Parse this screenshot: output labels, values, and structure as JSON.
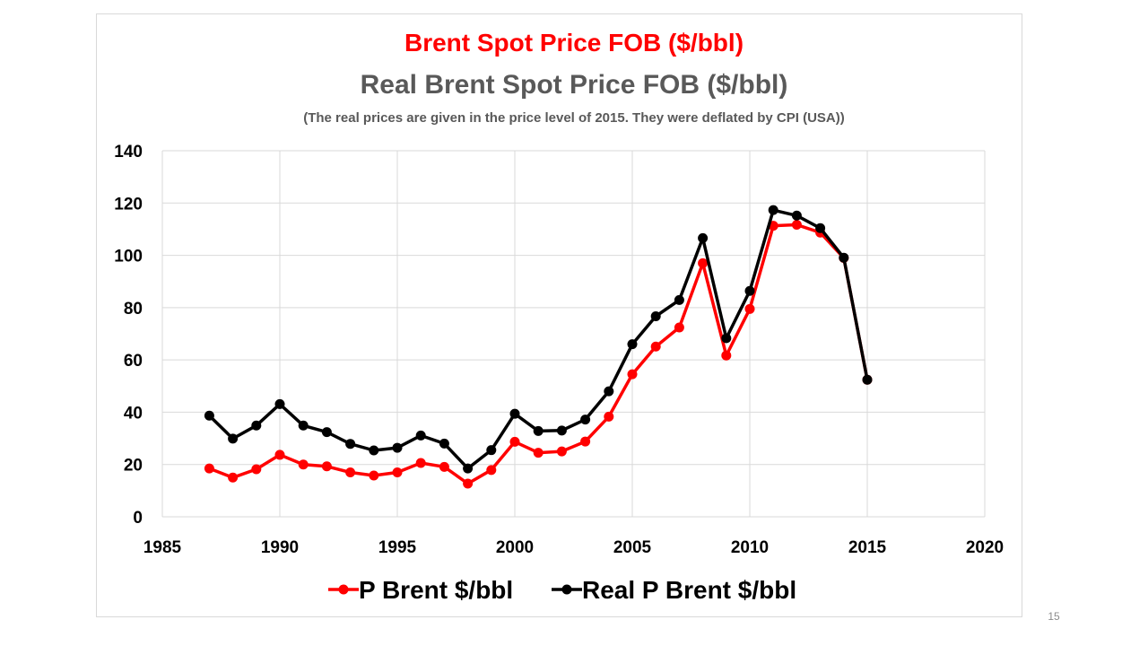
{
  "chart_data": {
    "type": "line",
    "title": "Brent Spot Price FOB ($/bbl)",
    "subtitle": "Real Brent Spot Price FOB ($/bbl)",
    "note": "(The real prices are given in the price level of 2015. They were deflated by CPI (USA))",
    "xlabel": "",
    "ylabel": "",
    "xlim": [
      1985,
      2020
    ],
    "ylim": [
      0,
      140
    ],
    "x_ticks": [
      1985,
      1990,
      1995,
      2000,
      2005,
      2010,
      2015,
      2020
    ],
    "y_ticks": [
      0,
      20,
      40,
      60,
      80,
      100,
      120,
      140
    ],
    "grid": true,
    "legend_position": "bottom",
    "x": [
      1987,
      1988,
      1989,
      1990,
      1991,
      1992,
      1993,
      1994,
      1995,
      1996,
      1997,
      1998,
      1999,
      2000,
      2001,
      2002,
      2003,
      2004,
      2005,
      2006,
      2007,
      2008,
      2009,
      2010,
      2011,
      2012,
      2013,
      2014,
      2015
    ],
    "series": [
      {
        "name": "P Brent $/bbl",
        "color": "#ff0000",
        "values": [
          18.5,
          15.0,
          18.2,
          23.7,
          20.0,
          19.3,
          17.0,
          15.8,
          17.0,
          20.6,
          19.1,
          12.7,
          17.9,
          28.7,
          24.5,
          25.0,
          28.8,
          38.3,
          54.5,
          65.1,
          72.4,
          97.0,
          61.7,
          79.5,
          111.3,
          111.7,
          108.7,
          99.0,
          52.4
        ]
      },
      {
        "name": "Real P Brent $/bbl",
        "color": "#000000",
        "values": [
          38.7,
          29.9,
          34.9,
          43.1,
          34.9,
          32.4,
          27.9,
          25.4,
          26.4,
          31.1,
          28.0,
          18.5,
          25.5,
          39.4,
          32.8,
          33.0,
          37.2,
          48.0,
          66.0,
          76.7,
          82.9,
          106.6,
          68.3,
          86.4,
          117.3,
          115.2,
          110.4,
          99.1,
          52.4
        ]
      }
    ]
  },
  "slide_number": "15"
}
